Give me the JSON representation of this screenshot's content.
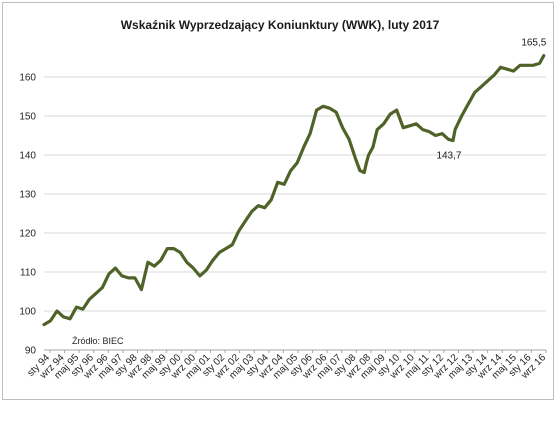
{
  "chart_data": {
    "type": "line",
    "title": "Wskaźnik Wyprzedzający Koniunktury (WWK),  luty 2017",
    "source": "Źródło: BIEC",
    "ylim": [
      90,
      170
    ],
    "yticks": [
      90,
      100,
      110,
      120,
      130,
      140,
      150,
      160
    ],
    "grid": "horizontal",
    "line_color": "#4f6228",
    "categories": [
      "sty 94",
      "wrz 94",
      "maj 95",
      "sty 96",
      "wrz 96",
      "maj 97",
      "sty 98",
      "wrz 98",
      "maj 99",
      "sty 00",
      "wrz 00",
      "maj 01",
      "sty 02",
      "wrz 02",
      "maj 03",
      "sty 04",
      "wrz 04",
      "maj 05",
      "sty 06",
      "wrz 06",
      "maj 07",
      "sty 08",
      "wrz 08",
      "maj 09",
      "sty 10",
      "wrz 10",
      "maj 11",
      "sty 12",
      "wrz 12",
      "maj 13",
      "sty 14",
      "wrz 14",
      "maj 15",
      "sty 16",
      "wrz 16"
    ],
    "x": [
      1994.0,
      1994.3,
      1994.6,
      1994.9,
      1995.2,
      1995.5,
      1995.8,
      1996.1,
      1996.4,
      1996.7,
      1997.0,
      1997.3,
      1997.6,
      1997.9,
      1998.2,
      1998.5,
      1998.8,
      1999.1,
      1999.4,
      1999.7,
      2000.0,
      2000.3,
      2000.6,
      2000.9,
      2001.2,
      2001.5,
      2001.8,
      2002.1,
      2002.4,
      2002.7,
      2003.0,
      2003.3,
      2003.6,
      2003.9,
      2004.2,
      2004.5,
      2004.8,
      2005.1,
      2005.4,
      2005.7,
      2006.0,
      2006.3,
      2006.6,
      2006.9,
      2007.2,
      2007.5,
      2007.8,
      2008.1,
      2008.4,
      2008.6,
      2008.8,
      2008.9,
      2009.0,
      2009.2,
      2009.4,
      2009.7,
      2010.0,
      2010.3,
      2010.6,
      2010.9,
      2011.2,
      2011.5,
      2011.8,
      2012.1,
      2012.4,
      2012.7,
      2012.9,
      2013.0,
      2013.3,
      2013.6,
      2013.9,
      2014.2,
      2014.5,
      2014.8,
      2015.1,
      2015.4,
      2015.7,
      2016.0,
      2016.3,
      2016.6,
      2016.9,
      2017.1
    ],
    "values": [
      96.5,
      97.5,
      100,
      98.5,
      98,
      101,
      100.5,
      103,
      104.5,
      106,
      109.5,
      111,
      109,
      108.5,
      108.5,
      105.5,
      112.5,
      111.5,
      113,
      116,
      116,
      115,
      112.5,
      111,
      109,
      110.5,
      113,
      115,
      116,
      117,
      120.5,
      123,
      125.5,
      127,
      126.5,
      128.5,
      133,
      132.5,
      136,
      138,
      142,
      145.5,
      151.5,
      152.5,
      152,
      151,
      147,
      144,
      139,
      136,
      135.5,
      138,
      140,
      142,
      146.5,
      148,
      150.5,
      151.5,
      147,
      147.5,
      148,
      146.5,
      146,
      145,
      145.5,
      144,
      143.7,
      146.5,
      150,
      153,
      156,
      157.5,
      159,
      160.5,
      162.5,
      162,
      161.5,
      163,
      163,
      163,
      163.5,
      165.5
    ],
    "annotations": [
      {
        "label": "165,5",
        "x": 2017.1,
        "y": 165.5
      },
      {
        "label": "143,7",
        "x": 2012.9,
        "y": 143.7
      }
    ]
  }
}
